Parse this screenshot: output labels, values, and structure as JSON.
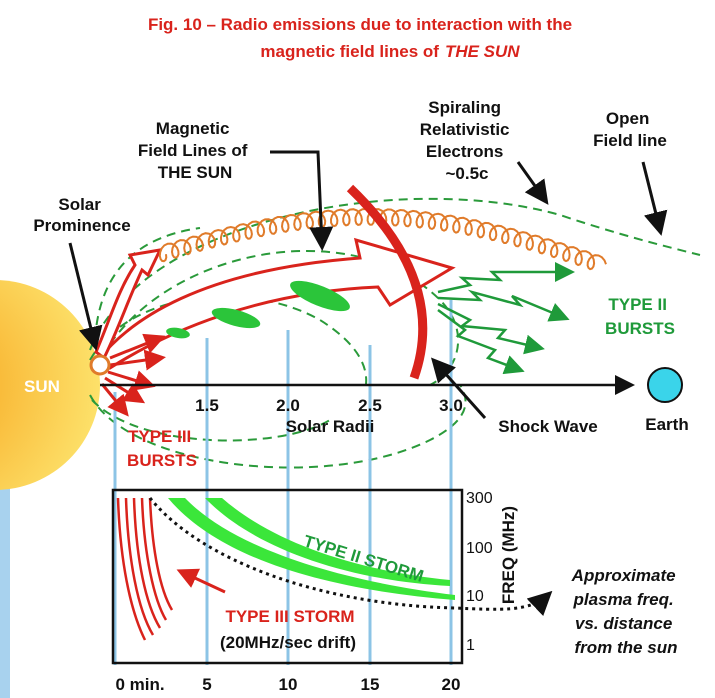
{
  "title": {
    "line1": "Fig. 10 – Radio emissions due to interaction with the",
    "line2": "magnetic field lines of",
    "emphasis": "THE SUN"
  },
  "labels": {
    "magnetic_field_lines": [
      "Magnetic",
      "Field Lines of",
      "THE SUN"
    ],
    "solar_prominence": [
      "Solar",
      "Prominence"
    ],
    "spiraling_electrons": [
      "Spiraling",
      "Relativistic",
      "Electrons",
      "~0.5c"
    ],
    "open_field_line": [
      "Open",
      "Field line"
    ],
    "sun": "SUN",
    "type2_bursts": [
      "TYPE II",
      "BURSTS"
    ],
    "type3_bursts": [
      "TYPE III",
      "BURSTS"
    ],
    "shock_wave": "Shock Wave",
    "earth": "Earth",
    "solar_radii": "Solar Radii",
    "type2_storm": "TYPE II STORM",
    "type3_storm": "TYPE III STORM",
    "drift": "(20MHz/sec drift)",
    "plasma_note": [
      "Approximate",
      "plasma freq.",
      "vs. distance",
      "from the sun"
    ],
    "freq_axis": "FREQ (MHz)"
  },
  "radii_ticks": [
    "1.5",
    "2.0",
    "2.5",
    "3.0"
  ],
  "freq_ticks": [
    "300",
    "100",
    "10",
    "1"
  ],
  "time_ticks": [
    "0 min.",
    "5",
    "10",
    "15",
    "20"
  ]
}
